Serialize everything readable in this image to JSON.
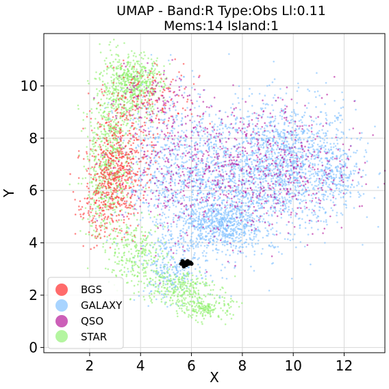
{
  "chart_data": {
    "type": "scatter",
    "title": "UMAP  -  Band:R Type:Obs Ll:0.11",
    "subtitle": "Mems:14 Island:1",
    "xlabel": "X",
    "ylabel": "Y",
    "xlim": [
      0.2,
      13.6
    ],
    "ylim": [
      -0.2,
      12.0
    ],
    "xticks": [
      2,
      4,
      6,
      8,
      10,
      12
    ],
    "yticks": [
      0,
      2,
      4,
      6,
      8,
      10
    ],
    "grid": true,
    "legend_position": "lower-left",
    "series": [
      {
        "name": "BGS",
        "color": "#ff3b3b",
        "regions": [
          {
            "cx": 2.9,
            "cy": 6.3,
            "sx": 0.55,
            "sy": 0.9,
            "n": 420
          },
          {
            "cx": 3.4,
            "cy": 8.0,
            "sx": 0.6,
            "sy": 1.2,
            "n": 260
          },
          {
            "cx": 4.6,
            "cy": 9.6,
            "sx": 0.9,
            "sy": 0.6,
            "n": 120
          },
          {
            "cx": 2.2,
            "cy": 4.8,
            "sx": 0.35,
            "sy": 0.5,
            "n": 60
          }
        ]
      },
      {
        "name": "GALAXY",
        "color": "#7fbfff",
        "regions": [
          {
            "cx": 9.8,
            "cy": 7.0,
            "sx": 1.3,
            "sy": 1.2,
            "n": 1400
          },
          {
            "cx": 7.0,
            "cy": 6.2,
            "sx": 1.3,
            "sy": 1.4,
            "n": 1100
          },
          {
            "cx": 7.2,
            "cy": 4.6,
            "sx": 0.8,
            "sy": 0.5,
            "n": 500
          },
          {
            "cx": 5.2,
            "cy": 3.0,
            "sx": 0.6,
            "sy": 0.6,
            "n": 240
          },
          {
            "cx": 5.0,
            "cy": 6.8,
            "sx": 1.0,
            "sy": 1.6,
            "n": 500
          },
          {
            "cx": 11.8,
            "cy": 6.6,
            "sx": 0.4,
            "sy": 0.5,
            "n": 140
          }
        ]
      },
      {
        "name": "QSO",
        "color": "#b5179e",
        "regions": [
          {
            "cx": 8.6,
            "cy": 6.8,
            "sx": 1.9,
            "sy": 1.3,
            "n": 650
          },
          {
            "cx": 5.0,
            "cy": 7.2,
            "sx": 1.2,
            "sy": 1.6,
            "n": 260
          },
          {
            "cx": 4.8,
            "cy": 9.8,
            "sx": 0.7,
            "sy": 0.5,
            "n": 60
          }
        ]
      },
      {
        "name": "STAR",
        "color": "#8ef06a",
        "regions": [
          {
            "cx": 3.7,
            "cy": 10.1,
            "sx": 0.6,
            "sy": 0.55,
            "n": 520
          },
          {
            "cx": 2.9,
            "cy": 8.2,
            "sx": 0.45,
            "sy": 1.2,
            "n": 420
          },
          {
            "cx": 2.6,
            "cy": 6.0,
            "sx": 0.45,
            "sy": 0.9,
            "n": 260
          },
          {
            "cx": 3.8,
            "cy": 3.6,
            "sx": 0.6,
            "sy": 0.6,
            "n": 260
          },
          {
            "cx": 5.4,
            "cy": 2.3,
            "sx": 0.7,
            "sy": 0.35,
            "n": 260
          },
          {
            "cx": 6.6,
            "cy": 1.5,
            "sx": 0.5,
            "sy": 0.22,
            "n": 180
          }
        ]
      }
    ],
    "highlight": {
      "color": "#000000",
      "points": [
        [
          5.6,
          3.2
        ],
        [
          5.7,
          3.1
        ],
        [
          5.75,
          3.25
        ],
        [
          5.8,
          3.15
        ],
        [
          5.85,
          3.3
        ],
        [
          5.9,
          3.2
        ],
        [
          5.95,
          3.25
        ],
        [
          6.0,
          3.2
        ],
        [
          5.65,
          3.3
        ],
        [
          5.7,
          3.15
        ]
      ]
    }
  },
  "legend": {
    "items": [
      {
        "label": "BGS",
        "color": "#ff6b6b"
      },
      {
        "label": "GALAXY",
        "color": "#a8d4ff"
      },
      {
        "label": "QSO",
        "color": "#cc5fb8"
      },
      {
        "label": "STAR",
        "color": "#b4f5a0"
      }
    ]
  }
}
